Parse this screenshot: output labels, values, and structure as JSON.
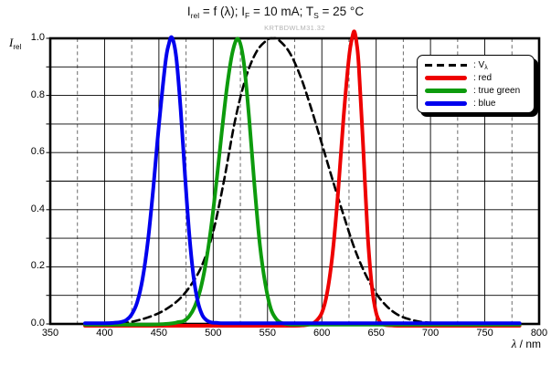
{
  "header": {
    "title_plain": "Irel = f (λ); IF = 10 mA; TS = 25 °C",
    "title_segments": [
      {
        "t": "I",
        "sub": "rel"
      },
      {
        "t": " = f (λ); I",
        "sub": "F"
      },
      {
        "t": " = 10 mA; T",
        "sub": "S"
      },
      {
        "t": " = 25 °C",
        "sub": ""
      }
    ],
    "watermark": "KRTBDWLM31.32"
  },
  "axes": {
    "x": {
      "label_main": "λ",
      "label_rest": " / nm",
      "min": 350,
      "max": 800,
      "major_step": 50,
      "minor_step": 25,
      "ticks": [
        350,
        400,
        450,
        500,
        550,
        600,
        650,
        700,
        750,
        800
      ],
      "tick_labels": [
        "350",
        "400",
        "450",
        "500",
        "550",
        "600",
        "650",
        "700",
        "750",
        "800"
      ]
    },
    "y": {
      "label_main": "I",
      "label_sub": "rel",
      "min": 0,
      "max": 1,
      "major_step": 0.2,
      "minor_step": 0.1,
      "ticks": [
        0,
        0.2,
        0.4,
        0.6,
        0.8,
        1.0
      ],
      "tick_labels": [
        "0.0",
        "0.2",
        "0.4",
        "0.6",
        "0.8",
        "1.0"
      ]
    }
  },
  "legend": {
    "items": [
      {
        "id": "vlambda",
        "main": ": V",
        "sub": "λ",
        "color": "#000000",
        "dashed": true
      },
      {
        "id": "red",
        "main": ": red",
        "sub": "",
        "color": "#ee0000",
        "dashed": false
      },
      {
        "id": "true-green",
        "main": ": true green",
        "sub": "",
        "color": "#0d9b0d",
        "dashed": false
      },
      {
        "id": "blue",
        "main": ": blue",
        "sub": "",
        "color": "#0000ee",
        "dashed": false
      }
    ]
  },
  "chart_data": {
    "type": "line",
    "title": "Irel = f (λ); IF = 10 mA; TS = 25 °C",
    "xlabel": "λ / nm",
    "ylabel": "Irel",
    "xlim": [
      350,
      800
    ],
    "ylim": [
      0,
      1
    ],
    "grid": {
      "x_major": "solid",
      "x_minor": "dashed-gray",
      "y_minor": "solid"
    },
    "legend_position": "upper right",
    "series": [
      {
        "id": "vlambda",
        "name": "Vλ",
        "color": "#000000",
        "dashed": true,
        "peak_nm": 555,
        "points": [
          [
            382,
            0
          ],
          [
            390,
            0.0001
          ],
          [
            400,
            0.0004
          ],
          [
            410,
            0.001
          ],
          [
            420,
            0.004
          ],
          [
            430,
            0.012
          ],
          [
            440,
            0.023
          ],
          [
            450,
            0.038
          ],
          [
            460,
            0.06
          ],
          [
            470,
            0.091
          ],
          [
            480,
            0.139
          ],
          [
            490,
            0.208
          ],
          [
            500,
            0.323
          ],
          [
            510,
            0.503
          ],
          [
            520,
            0.71
          ],
          [
            530,
            0.862
          ],
          [
            540,
            0.954
          ],
          [
            550,
            0.995
          ],
          [
            555,
            1.0
          ],
          [
            560,
            0.995
          ],
          [
            570,
            0.952
          ],
          [
            580,
            0.87
          ],
          [
            590,
            0.757
          ],
          [
            600,
            0.631
          ],
          [
            610,
            0.503
          ],
          [
            620,
            0.381
          ],
          [
            630,
            0.265
          ],
          [
            640,
            0.175
          ],
          [
            650,
            0.107
          ],
          [
            660,
            0.061
          ],
          [
            670,
            0.032
          ],
          [
            680,
            0.017
          ],
          [
            690,
            0.008
          ],
          [
            700,
            0.004
          ],
          [
            710,
            0.002
          ],
          [
            720,
            0.001
          ],
          [
            730,
            0.001
          ],
          [
            740,
            0
          ],
          [
            750,
            0
          ],
          [
            780,
            0
          ]
        ]
      },
      {
        "id": "red",
        "name": "red",
        "color": "#ee0000",
        "dashed": false,
        "peak_nm": 630,
        "points": [
          [
            382,
            0
          ],
          [
            450,
            0
          ],
          [
            520,
            0
          ],
          [
            560,
            0
          ],
          [
            575,
            0
          ],
          [
            582,
            0.001
          ],
          [
            588,
            0.004
          ],
          [
            594,
            0.014
          ],
          [
            600,
            0.045
          ],
          [
            605,
            0.118
          ],
          [
            610,
            0.257
          ],
          [
            615,
            0.47
          ],
          [
            620,
            0.73
          ],
          [
            625,
            0.94
          ],
          [
            628,
            1.01
          ],
          [
            630,
            1.03
          ],
          [
            632,
            0.99
          ],
          [
            634,
            0.91
          ],
          [
            638,
            0.63
          ],
          [
            642,
            0.33
          ],
          [
            646,
            0.14
          ],
          [
            650,
            0.045
          ],
          [
            654,
            0.011
          ],
          [
            658,
            0.003
          ],
          [
            664,
            0.001
          ],
          [
            672,
            0
          ],
          [
            700,
            0
          ],
          [
            740,
            0
          ],
          [
            782,
            0
          ]
        ]
      },
      {
        "id": "true-green",
        "name": "true green",
        "color": "#0d9b0d",
        "dashed": false,
        "peak_nm": 523,
        "points": [
          [
            382,
            0
          ],
          [
            430,
            0
          ],
          [
            448,
            0.001
          ],
          [
            455,
            0.002
          ],
          [
            463,
            0.005
          ],
          [
            468,
            0.009
          ],
          [
            473,
            0.013
          ],
          [
            478,
            0.03
          ],
          [
            483,
            0.063
          ],
          [
            488,
            0.12
          ],
          [
            493,
            0.211
          ],
          [
            498,
            0.339
          ],
          [
            503,
            0.5
          ],
          [
            508,
            0.678
          ],
          [
            513,
            0.841
          ],
          [
            518,
            0.958
          ],
          [
            523,
            1.0
          ],
          [
            528,
            0.923
          ],
          [
            533,
            0.726
          ],
          [
            538,
            0.487
          ],
          [
            543,
            0.278
          ],
          [
            548,
            0.142
          ],
          [
            553,
            0.056
          ],
          [
            558,
            0.02
          ],
          [
            563,
            0.006
          ],
          [
            570,
            0.001
          ],
          [
            578,
            0
          ],
          [
            620,
            0
          ],
          [
            700,
            0
          ],
          [
            782,
            0
          ]
        ]
      },
      {
        "id": "blue",
        "name": "blue",
        "color": "#0000ee",
        "dashed": false,
        "peak_nm": 462,
        "points": [
          [
            382,
            0
          ],
          [
            400,
            0
          ],
          [
            408,
            0.001
          ],
          [
            415,
            0.004
          ],
          [
            420,
            0.011
          ],
          [
            425,
            0.031
          ],
          [
            430,
            0.073
          ],
          [
            435,
            0.156
          ],
          [
            440,
            0.291
          ],
          [
            445,
            0.479
          ],
          [
            450,
            0.693
          ],
          [
            456,
            0.912
          ],
          [
            459,
            0.975
          ],
          [
            462,
            1.0
          ],
          [
            466,
            0.93
          ],
          [
            470,
            0.75
          ],
          [
            474,
            0.52
          ],
          [
            478,
            0.31
          ],
          [
            482,
            0.16
          ],
          [
            486,
            0.073
          ],
          [
            490,
            0.028
          ],
          [
            494,
            0.01
          ],
          [
            498,
            0.003
          ],
          [
            504,
            0.001
          ],
          [
            512,
            0
          ],
          [
            560,
            0
          ],
          [
            620,
            0
          ],
          [
            700,
            0
          ],
          [
            782,
            0
          ]
        ]
      }
    ]
  }
}
